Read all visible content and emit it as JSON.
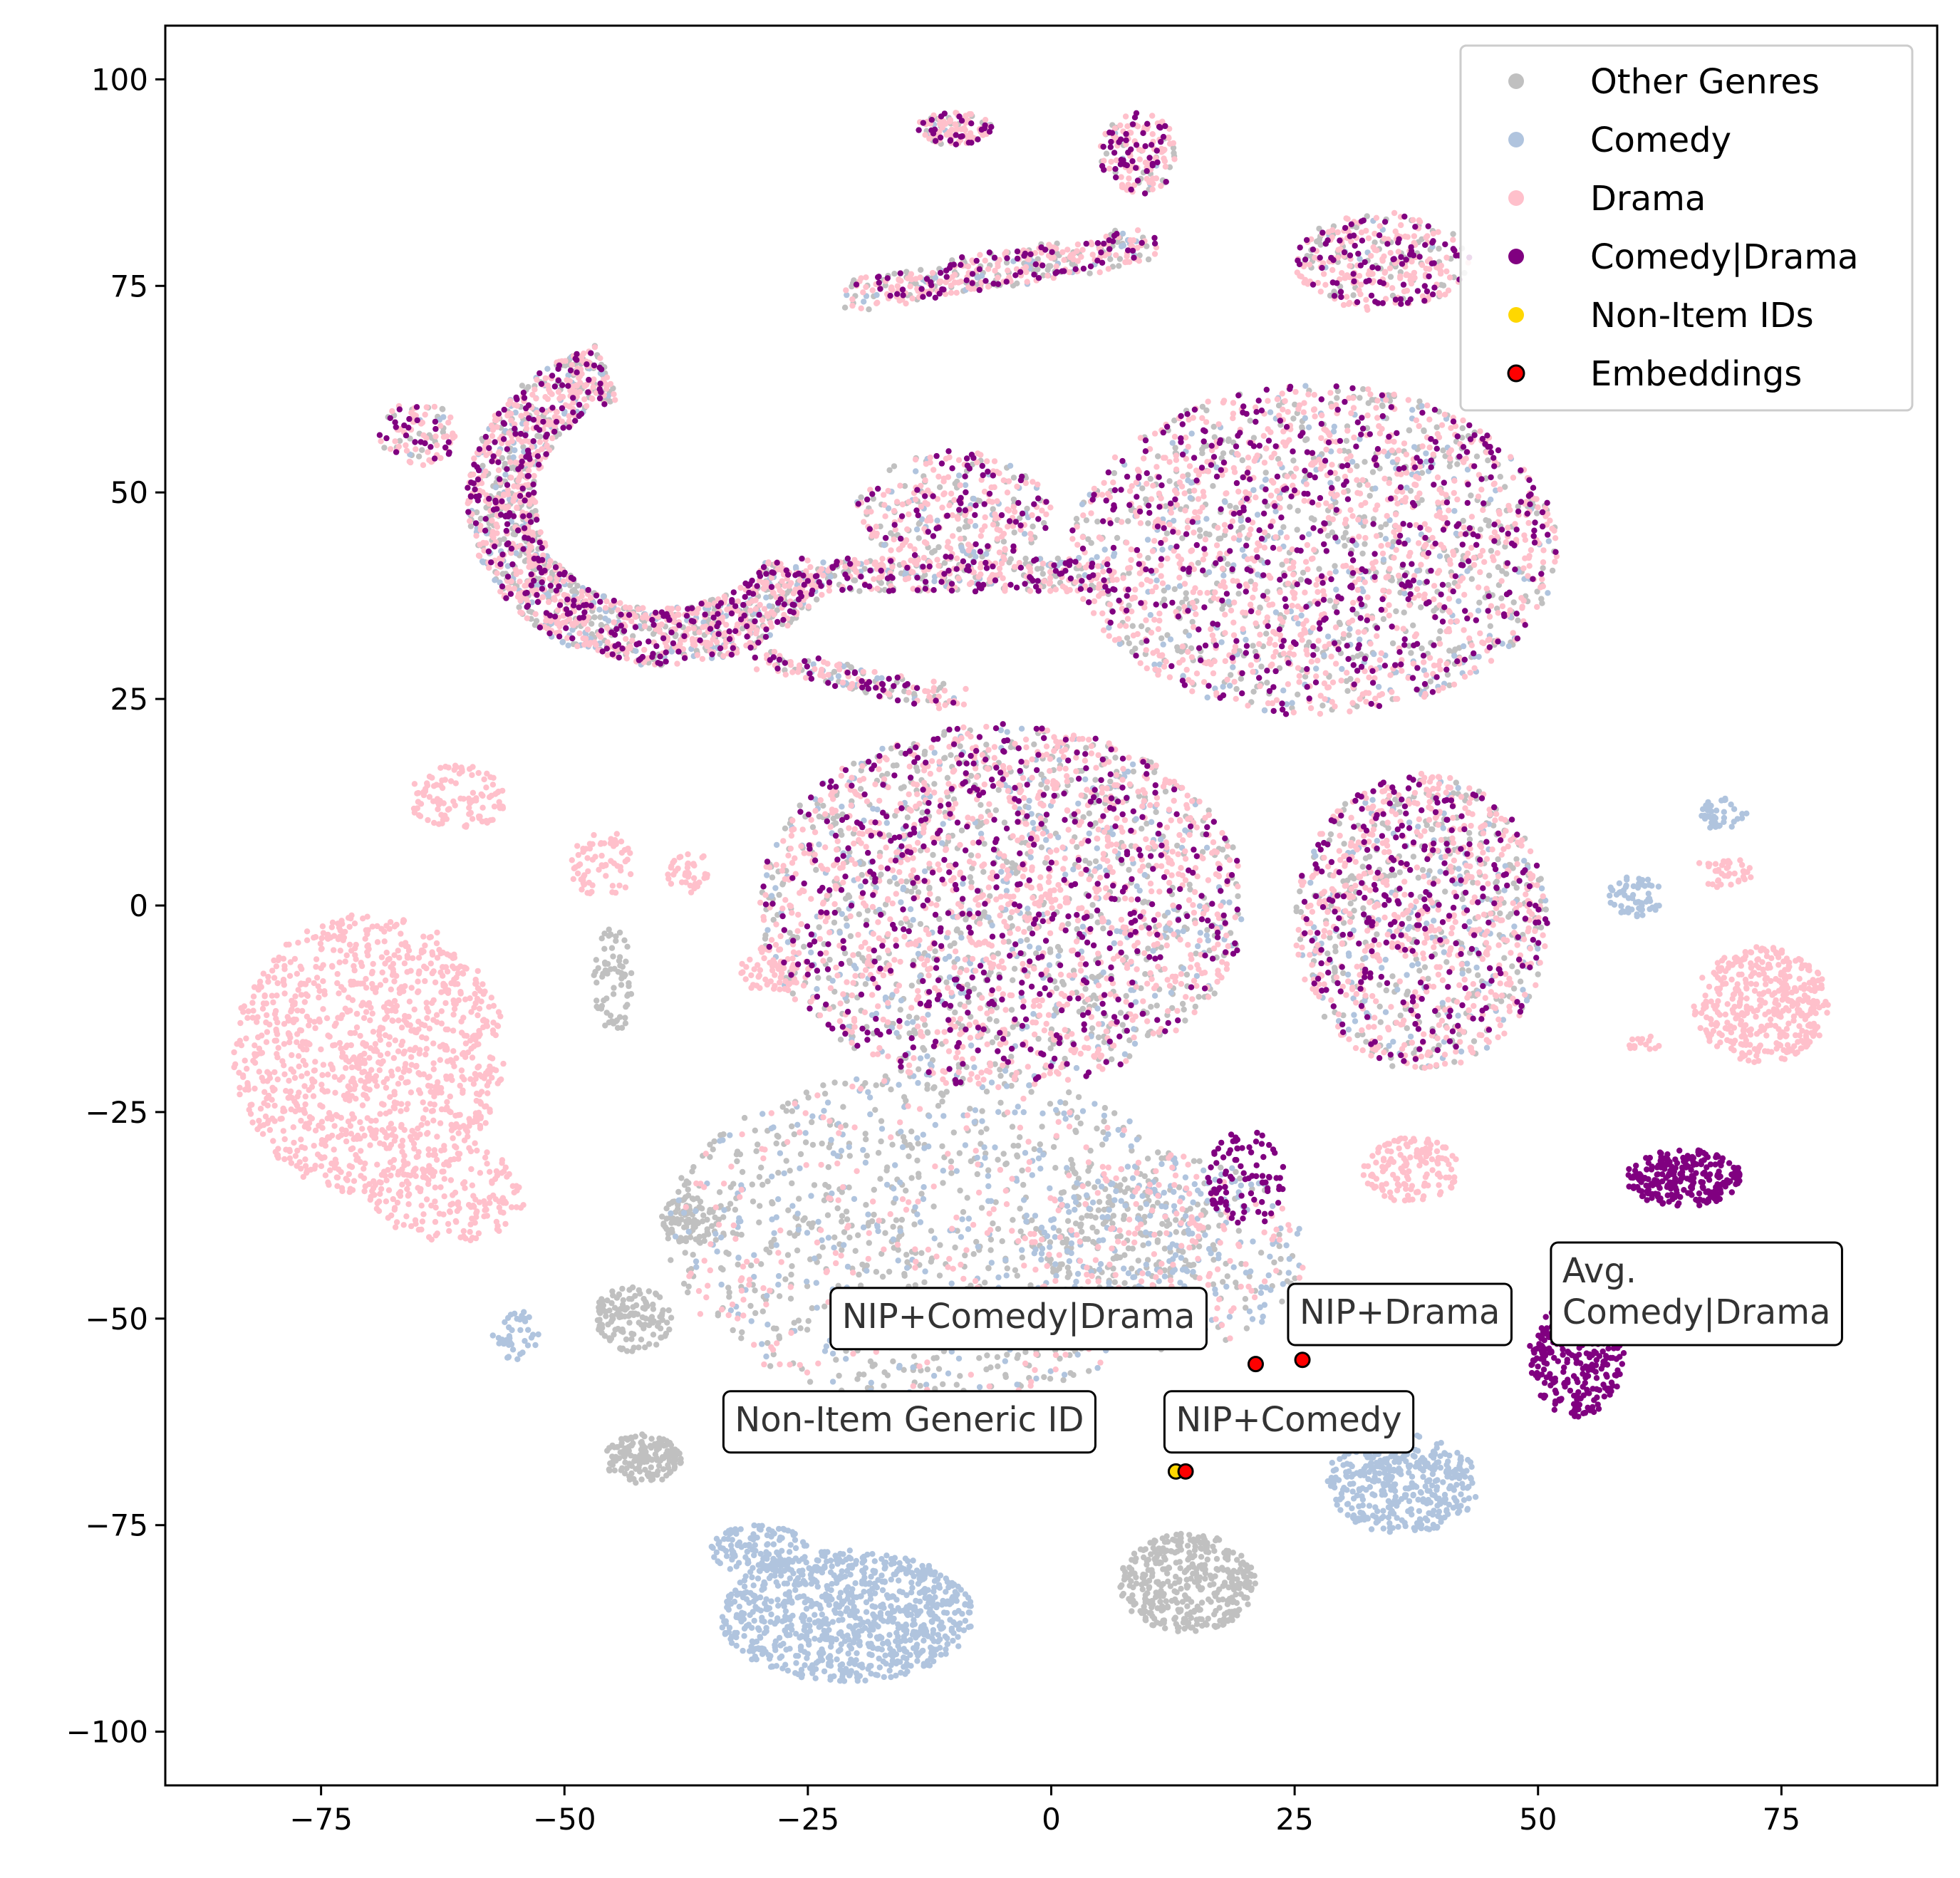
{
  "chart_data": {
    "type": "scatter",
    "title": "",
    "xlabel": "",
    "ylabel": "",
    "xlim": [
      -91,
      91
    ],
    "ylim": [
      -106.5,
      106.5
    ],
    "xticks": [
      -75,
      -50,
      -25,
      0,
      25,
      50,
      75
    ],
    "yticks": [
      -100,
      -75,
      -50,
      -25,
      0,
      25,
      50,
      75,
      100
    ],
    "xtick_labels": [
      "−75",
      "−50",
      "−25",
      "0",
      "25",
      "50",
      "75"
    ],
    "ytick_labels": [
      "−100",
      "−75",
      "−50",
      "−25",
      "0",
      "25",
      "50",
      "75",
      "100"
    ],
    "grid": false,
    "legend_position": "top-right",
    "series": [
      {
        "name": "Other Genres",
        "color": "#c0c0c0"
      },
      {
        "name": "Comedy",
        "color": "#b0c4de"
      },
      {
        "name": "Drama",
        "color": "#ffc0cb"
      },
      {
        "name": "Comedy|Drama",
        "color": "#800080"
      },
      {
        "name": "Non-Item IDs",
        "color": "#ffd700"
      },
      {
        "name": "Embeddings",
        "color": "#ff0000",
        "edge": "#000000"
      }
    ],
    "clusters": [
      {
        "series": 2,
        "cx": -70,
        "cy": -18,
        "rx": 14,
        "ry": 17,
        "n": 1100
      },
      {
        "series": 2,
        "cx": -62,
        "cy": -35,
        "rx": 8,
        "ry": 6,
        "n": 180
      },
      {
        "series": 2,
        "cx": -61,
        "cy": 13,
        "rx": 5,
        "ry": 4,
        "n": 110
      },
      {
        "series": 2,
        "cx": -46,
        "cy": 5,
        "rx": 3.5,
        "ry": 4,
        "n": 70
      },
      {
        "series": 2,
        "cx": -37,
        "cy": 4,
        "rx": 2.5,
        "ry": 2.5,
        "n": 40
      },
      {
        "series": 2,
        "cx": -29,
        "cy": -8,
        "rx": 3,
        "ry": 3,
        "n": 60
      },
      {
        "series": 2,
        "cx": 37,
        "cy": -32,
        "rx": 5,
        "ry": 4,
        "n": 140
      },
      {
        "series": 2,
        "cx": 73,
        "cy": -12,
        "rx": 7,
        "ry": 7,
        "n": 400
      },
      {
        "series": 2,
        "cx": 69,
        "cy": 4,
        "rx": 3,
        "ry": 2,
        "n": 40
      },
      {
        "series": 2,
        "cx": 61,
        "cy": -17,
        "rx": 2,
        "ry": 1.5,
        "n": 15
      },
      {
        "series": 1,
        "cx": -21,
        "cy": -86,
        "rx": 13,
        "ry": 8,
        "n": 900
      },
      {
        "series": 1,
        "cx": -30,
        "cy": -78,
        "rx": 5,
        "ry": 3,
        "n": 120
      },
      {
        "series": 1,
        "cx": 36,
        "cy": -70,
        "rx": 8,
        "ry": 6,
        "n": 400
      },
      {
        "series": 1,
        "cx": -55,
        "cy": -52,
        "rx": 2.5,
        "ry": 3,
        "n": 40
      },
      {
        "series": 1,
        "cx": 60,
        "cy": 1,
        "rx": 3,
        "ry": 2.5,
        "n": 60
      },
      {
        "series": 1,
        "cx": 69,
        "cy": 11,
        "rx": 2.5,
        "ry": 2,
        "n": 40
      },
      {
        "series": 0,
        "cx": 14,
        "cy": -82,
        "rx": 7,
        "ry": 6,
        "n": 400
      },
      {
        "series": 0,
        "cx": -42,
        "cy": -67,
        "rx": 4,
        "ry": 3,
        "n": 160
      },
      {
        "series": 0,
        "cx": -43,
        "cy": -50,
        "rx": 4,
        "ry": 4,
        "n": 130
      },
      {
        "series": 0,
        "cx": -37,
        "cy": -38,
        "rx": 3,
        "ry": 3,
        "n": 80
      },
      {
        "series": 0,
        "cx": -45,
        "cy": -9,
        "rx": 2,
        "ry": 7,
        "n": 70
      },
      {
        "series": 3,
        "cx": 65,
        "cy": -33,
        "rx": 6,
        "ry": 3.5,
        "n": 250
      },
      {
        "series": 3,
        "cx": 54,
        "cy": -55,
        "rx": 5,
        "ry": 7,
        "n": 300
      },
      {
        "series": 3,
        "cx": 20,
        "cy": -33,
        "rx": 4,
        "ry": 6,
        "n": 90
      }
    ],
    "regions": [
      {
        "cx": -10,
        "cy": 94,
        "rx": 4,
        "ry": 2,
        "n": 120,
        "weights": [
          0.15,
          0.05,
          0.5,
          0.3
        ]
      },
      {
        "cx": 9,
        "cy": 91,
        "rx": 4,
        "ry": 5,
        "n": 160,
        "weights": [
          0.15,
          0.05,
          0.5,
          0.3
        ]
      },
      {
        "cx": 34,
        "cy": 78,
        "rx": 9,
        "ry": 6,
        "n": 350,
        "weights": [
          0.2,
          0.05,
          0.5,
          0.25
        ]
      },
      {
        "cx": -65,
        "cy": 57,
        "rx": 4,
        "ry": 4,
        "n": 100,
        "weights": [
          0.2,
          0.05,
          0.5,
          0.25
        ]
      },
      {
        "cx": 27,
        "cy": 43,
        "rx": 25,
        "ry": 20,
        "n": 2200,
        "weights": [
          0.25,
          0.1,
          0.45,
          0.2
        ]
      },
      {
        "cx": -10,
        "cy": 48,
        "rx": 10,
        "ry": 7,
        "n": 350,
        "weights": [
          0.25,
          0.1,
          0.45,
          0.2
        ]
      },
      {
        "cx": -5,
        "cy": 0,
        "rx": 25,
        "ry": 22,
        "n": 2600,
        "weights": [
          0.25,
          0.12,
          0.43,
          0.2
        ]
      },
      {
        "cx": 38,
        "cy": -2,
        "rx": 13,
        "ry": 18,
        "n": 1300,
        "weights": [
          0.25,
          0.12,
          0.43,
          0.2
        ]
      },
      {
        "cx": -12,
        "cy": -40,
        "rx": 28,
        "ry": 20,
        "n": 1300,
        "weights": [
          0.55,
          0.25,
          0.2,
          0.0
        ]
      },
      {
        "cx": 12,
        "cy": -42,
        "rx": 14,
        "ry": 12,
        "n": 500,
        "weights": [
          0.3,
          0.4,
          0.3,
          0.0
        ]
      }
    ],
    "arcs": [
      {
        "cx": -40,
        "cy": 49,
        "r1": 20,
        "r2": 13,
        "a0": 110,
        "a1": 330,
        "n": 1700,
        "weights": [
          0.25,
          0.1,
          0.45,
          0.2
        ]
      },
      {
        "x0": -20,
        "y0": 74,
        "x1": 10,
        "y1": 80,
        "w": 4,
        "n": 420,
        "weights": [
          0.25,
          0.1,
          0.45,
          0.2
        ]
      },
      {
        "x0": -25,
        "y0": 40,
        "x1": 5,
        "y1": 40,
        "w": 4,
        "n": 380,
        "weights": [
          0.25,
          0.1,
          0.45,
          0.2
        ]
      },
      {
        "x0": -30,
        "y0": 30,
        "x1": -10,
        "y1": 25,
        "w": 3,
        "n": 160,
        "weights": [
          0.25,
          0.1,
          0.45,
          0.2
        ]
      }
    ],
    "points": [
      {
        "label": "Non-Item Generic ID",
        "x": 12.8,
        "y": -68.5,
        "series": 4
      },
      {
        "label": "NIP+Comedy",
        "x": 13.8,
        "y": -68.5,
        "series": 5
      },
      {
        "label": "NIP+Comedy|Drama",
        "x": 21.0,
        "y": -55.5,
        "series": 5
      },
      {
        "label": "NIP+Drama",
        "x": 25.8,
        "y": -55.0,
        "series": 5
      },
      {
        "label": "Avg.\nComedy|Drama",
        "x": 53.0,
        "y": -51.5,
        "series": 5
      }
    ],
    "annotations": [
      {
        "lines": [
          "NIP+Comedy|Drama"
        ],
        "x": -21.5,
        "y": -50,
        "anchor": "left"
      },
      {
        "lines": [
          "NIP+Drama"
        ],
        "x": 25.5,
        "y": -49.5,
        "anchor": "left"
      },
      {
        "lines": [
          "Avg.",
          "Comedy|Drama"
        ],
        "x": 52.5,
        "y": -44.5,
        "anchor": "left"
      },
      {
        "lines": [
          "Non-Item Generic ID"
        ],
        "x": -32.5,
        "y": -62.5,
        "anchor": "left"
      },
      {
        "lines": [
          "NIP+Comedy"
        ],
        "x": 12.8,
        "y": -62.5,
        "anchor": "left"
      }
    ]
  }
}
